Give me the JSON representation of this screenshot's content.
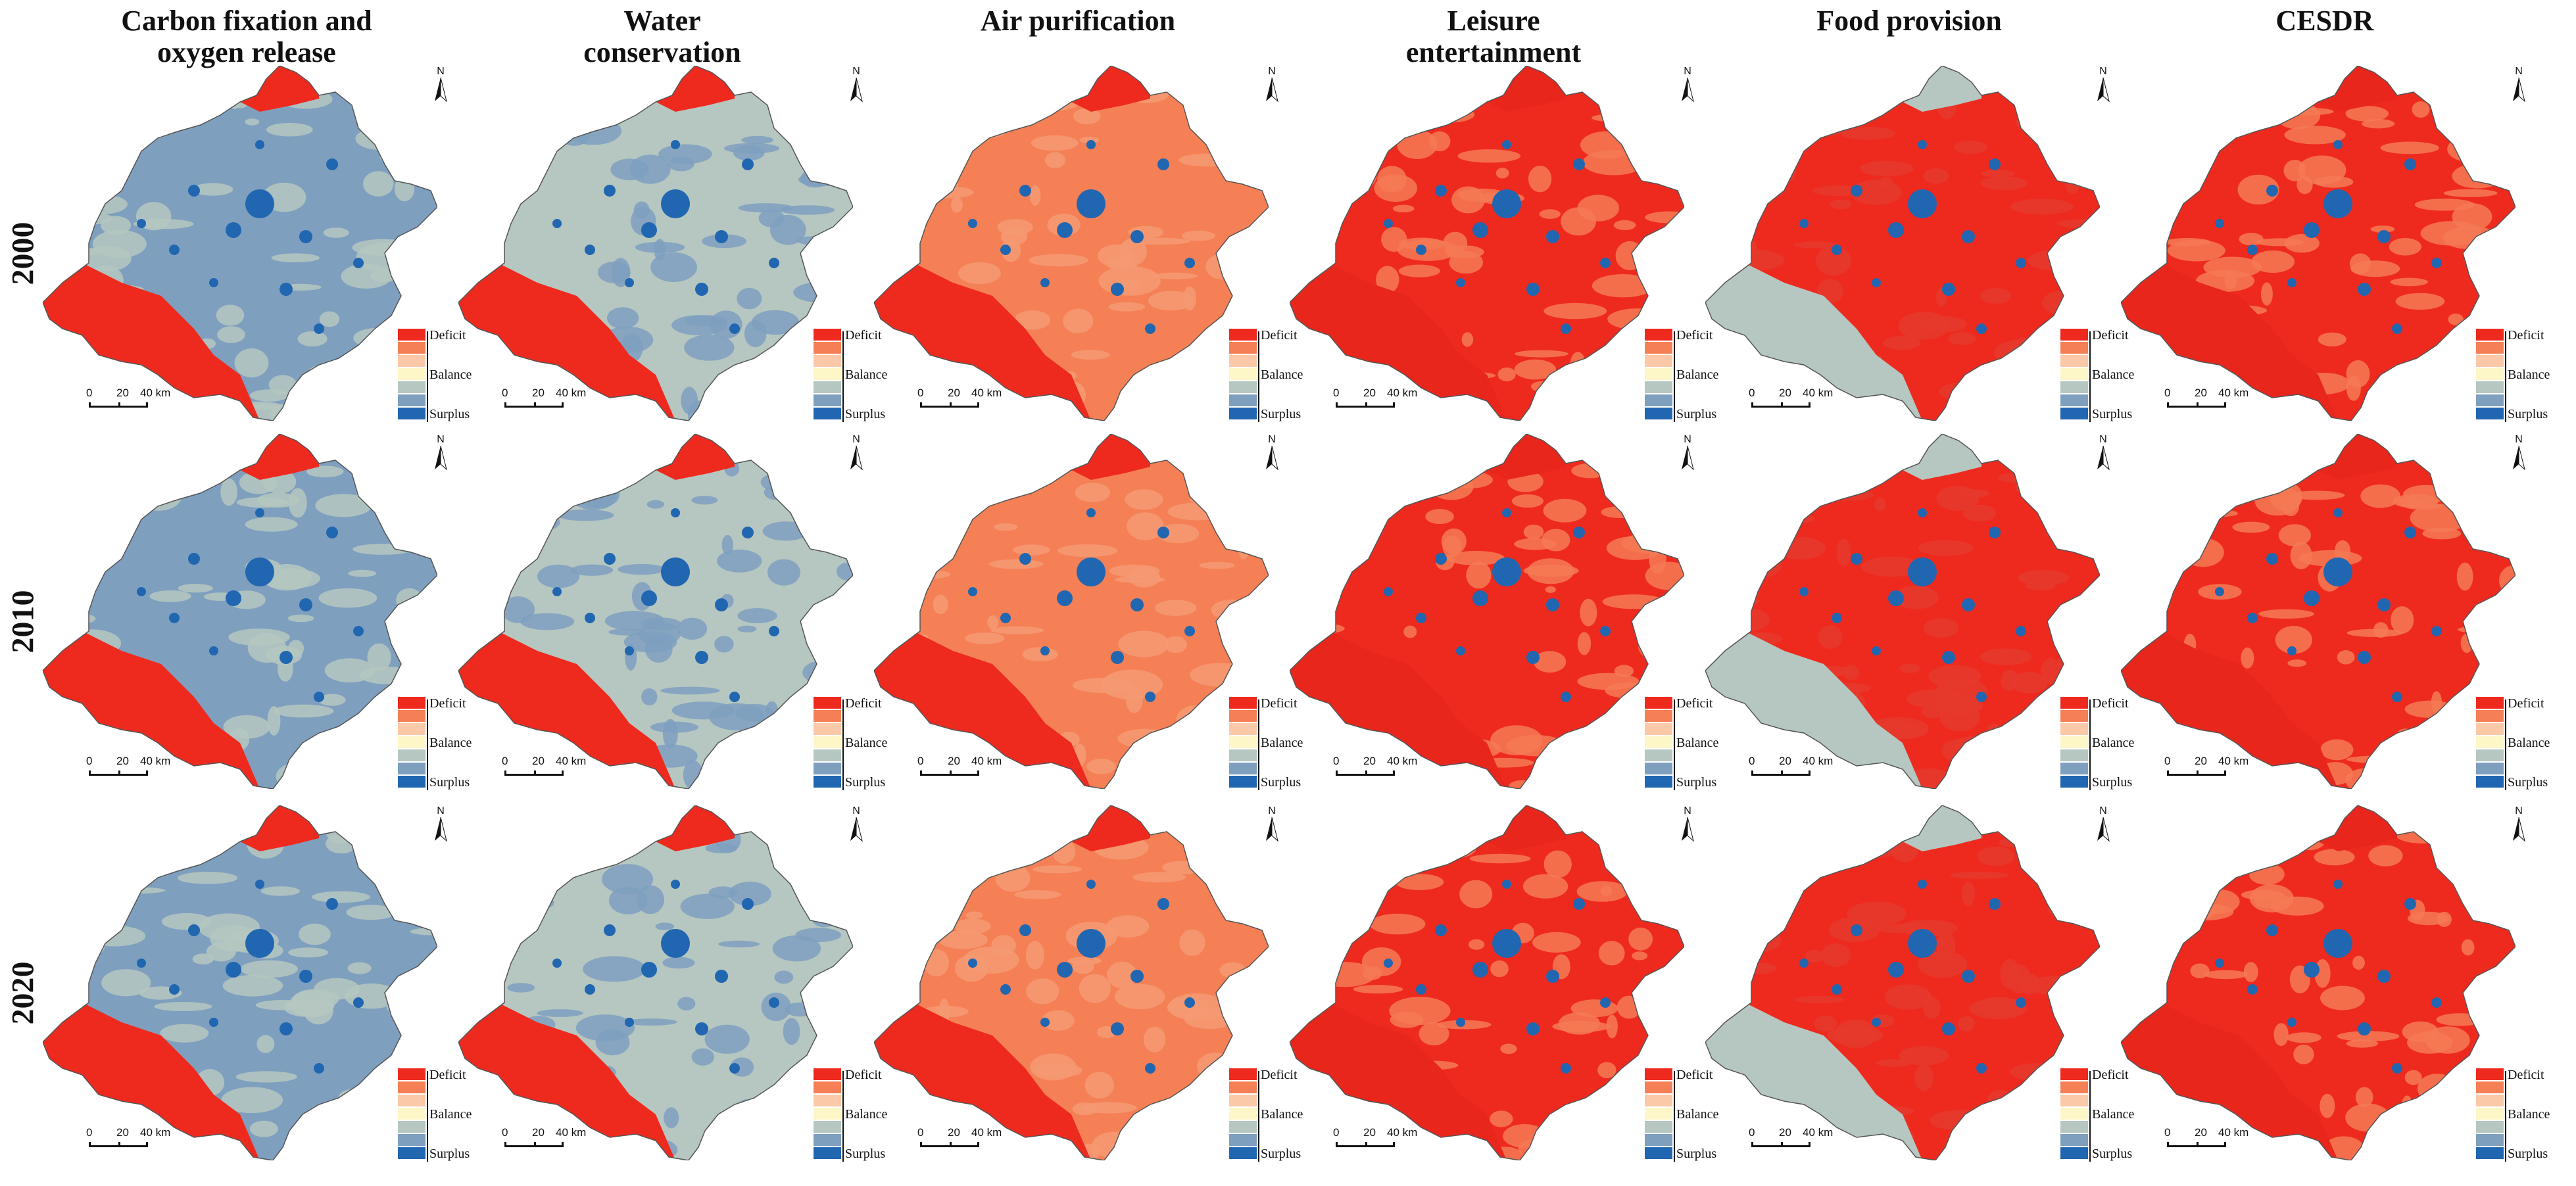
{
  "columns": [
    {
      "id": "carbon",
      "title": "Carbon fixation and\noxygen release"
    },
    {
      "id": "water",
      "title": "Water\nconservation"
    },
    {
      "id": "air",
      "title": "Air purification"
    },
    {
      "id": "leisure",
      "title": "Leisure\nentertainment"
    },
    {
      "id": "food",
      "title": "Food provision"
    },
    {
      "id": "cesdr",
      "title": "CESDR"
    }
  ],
  "rows": [
    {
      "year": "2000"
    },
    {
      "year": "2010"
    },
    {
      "year": "2020"
    }
  ],
  "legend": {
    "labels": {
      "deficit": "Deficit",
      "balance": "Balance",
      "surplus": "Surplus"
    },
    "colors": [
      "#ee2a1e",
      "#f58055",
      "#fbc9a8",
      "#fdf6c6",
      "#b5c7c0",
      "#7f9fbf",
      "#2166b0"
    ]
  },
  "scale_bar": {
    "labels": [
      "0",
      "20",
      "40 km"
    ]
  },
  "north_label": "N",
  "map_colors": {
    "carbon": {
      "base": "#7f9fbf",
      "patch": "#b5c7c0",
      "hot": "#2166b0",
      "deficit": "#ee2a1e"
    },
    "water": {
      "base": "#b5c7c0",
      "patch": "#7f9fbf",
      "hot": "#2166b0",
      "deficit": "#ee2a1e"
    },
    "air": {
      "base": "#f58055",
      "patch": "#f49a74",
      "hot": "#2166b0",
      "deficit": "#ee2a1e"
    },
    "leisure": {
      "base": "#ee2a1e",
      "patch": "#f47a55",
      "hot": "#2166b0",
      "deficit": "#e8261c"
    },
    "food": {
      "base": "#ee2a1e",
      "patch": "#e53a2d",
      "hot": "#2166b0",
      "deficit": "#b5c7c0"
    },
    "cesdr": {
      "base": "#ee2a1e",
      "patch": "#f47a55",
      "hot": "#2166b0",
      "deficit": "#e8261c"
    }
  }
}
